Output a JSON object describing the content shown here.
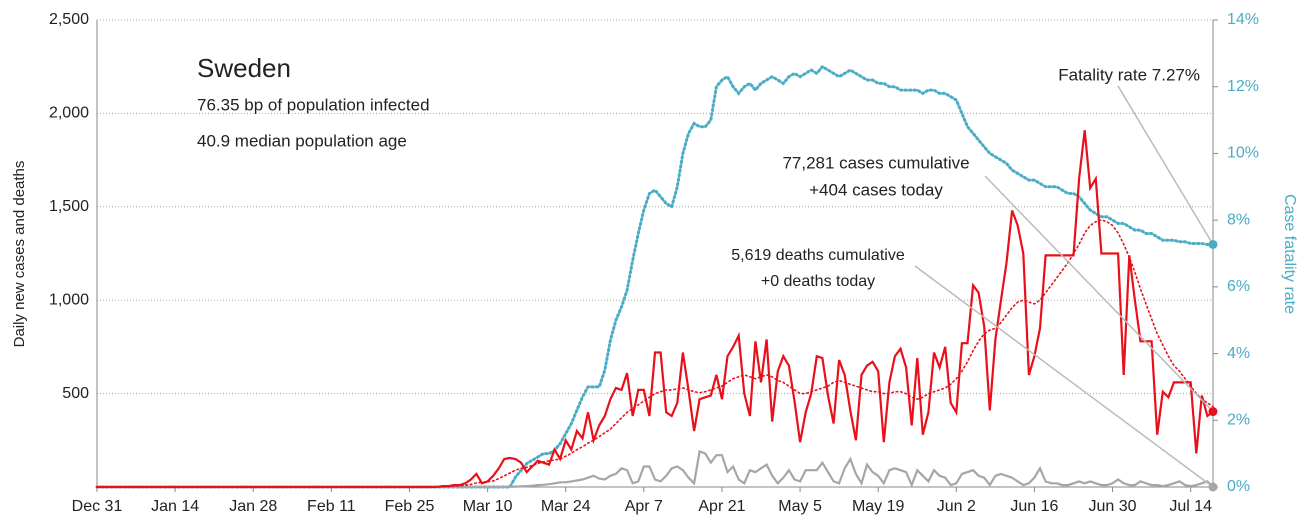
{
  "chart_data": {
    "type": "line",
    "title": "Sweden",
    "subtitle": [
      "76.35 bp of population infected",
      "40.9 median population age"
    ],
    "ylabel": "Daily new cases and deaths",
    "y2label": "Case fatality rate",
    "annotations": [
      "Fatality rate 7.27%",
      "77,281 cases cumulative",
      "+404 cases today",
      "5,619 deaths cumulative",
      "+0 deaths today"
    ],
    "grid": true,
    "ylim": [
      0,
      2500
    ],
    "yticks": [
      500,
      {
        "value": 1000,
        "label": "1,000"
      },
      {
        "value": 1500,
        "label": "1,500"
      },
      {
        "value": 2000,
        "label": "2,000"
      },
      {
        "value": 2500,
        "label": "2,500"
      }
    ],
    "y2lim": [
      0,
      14
    ],
    "y2ticks": [
      {
        "value": 0,
        "label": "0%"
      },
      {
        "value": 2,
        "label": "2%"
      },
      {
        "value": 4,
        "label": "4%"
      },
      {
        "value": 6,
        "label": "6%"
      },
      {
        "value": 8,
        "label": "8%"
      },
      {
        "value": 10,
        "label": "10%"
      },
      {
        "value": 12,
        "label": "12%"
      },
      {
        "value": 14,
        "label": "14%"
      }
    ],
    "categories": [
      "Dec 31",
      null,
      null,
      null,
      null,
      null,
      null,
      null,
      null,
      null,
      null,
      null,
      null,
      null,
      "Jan 14",
      null,
      null,
      null,
      null,
      null,
      null,
      null,
      null,
      null,
      null,
      null,
      null,
      null,
      "Jan 28",
      null,
      null,
      null,
      null,
      null,
      null,
      null,
      null,
      null,
      null,
      null,
      null,
      null,
      "Feb 11",
      null,
      null,
      null,
      null,
      null,
      null,
      null,
      null,
      null,
      null,
      null,
      null,
      null,
      "Feb 25",
      null,
      null,
      null,
      null,
      null,
      null,
      null,
      null,
      null,
      null,
      null,
      null,
      null,
      "Mar 10",
      null,
      null,
      null,
      null,
      null,
      null,
      null,
      null,
      null,
      null,
      null,
      null,
      null,
      "Mar 24",
      null,
      null,
      null,
      null,
      null,
      null,
      null,
      null,
      null,
      null,
      null,
      null,
      null,
      "Apr 7",
      null,
      null,
      null,
      null,
      null,
      null,
      null,
      null,
      null,
      null,
      null,
      null,
      null,
      "Apr 21",
      null,
      null,
      null,
      null,
      null,
      null,
      null,
      null,
      null,
      null,
      null,
      null,
      null,
      "May 5",
      null,
      null,
      null,
      null,
      null,
      null,
      null,
      null,
      null,
      null,
      null,
      null,
      null,
      "May 19",
      null,
      null,
      null,
      null,
      null,
      null,
      null,
      null,
      null,
      null,
      null,
      null,
      null,
      "Jun 2",
      null,
      null,
      null,
      null,
      null,
      null,
      null,
      null,
      null,
      null,
      null,
      null,
      null,
      "Jun 16",
      null,
      null,
      null,
      null,
      null,
      null,
      null,
      null,
      null,
      null,
      null,
      null,
      null,
      "Jun 30",
      null,
      null,
      null,
      null,
      null,
      null,
      null,
      null,
      null,
      null,
      null,
      null,
      null,
      "Jul 14",
      null,
      null,
      null,
      null
    ],
    "series": [
      {
        "color": "#4bacc6",
        "line_style": "dotted",
        "axis": "y2",
        "values": [
          0,
          0,
          0,
          0,
          0,
          0,
          0,
          0,
          0,
          0,
          0,
          0,
          0,
          0,
          0,
          0,
          0,
          0,
          0,
          0,
          0,
          0,
          0,
          0,
          0,
          0,
          0,
          0,
          0,
          0,
          0,
          0,
          0,
          0,
          0,
          0,
          0,
          0,
          0,
          0,
          0,
          0,
          0,
          0,
          0,
          0,
          0,
          0,
          0,
          0,
          0,
          0,
          0,
          0,
          0,
          0,
          0,
          0,
          0,
          0,
          0,
          0,
          0,
          0,
          0,
          0,
          0,
          0,
          0,
          0,
          0,
          0,
          0,
          0,
          0,
          0.3,
          0.5,
          0.7,
          0.8,
          0.9,
          1.0,
          1.0,
          1.1,
          1.3,
          1.6,
          1.9,
          2.3,
          2.7,
          3.0,
          3.0,
          3.0,
          3.5,
          4.4,
          5.0,
          5.4,
          5.9,
          6.8,
          7.6,
          8.3,
          8.8,
          8.9,
          8.7,
          8.5,
          8.4,
          9.0,
          10.0,
          10.6,
          10.9,
          10.8,
          10.8,
          11.0,
          12.0,
          12.2,
          12.3,
          12.0,
          11.8,
          12.0,
          12.1,
          11.9,
          12.1,
          12.2,
          12.3,
          12.2,
          12.1,
          12.3,
          12.4,
          12.3,
          12.4,
          12.5,
          12.4,
          12.6,
          12.5,
          12.4,
          12.3,
          12.4,
          12.5,
          12.4,
          12.3,
          12.2,
          12.2,
          12.1,
          12.1,
          12.0,
          12.0,
          11.9,
          11.9,
          11.9,
          11.9,
          11.8,
          11.9,
          11.9,
          11.8,
          11.8,
          11.7,
          11.6,
          11.2,
          10.8,
          10.6,
          10.4,
          10.2,
          10.0,
          9.9,
          9.8,
          9.7,
          9.5,
          9.4,
          9.3,
          9.2,
          9.2,
          9.1,
          9.0,
          9.0,
          9.0,
          8.9,
          8.8,
          8.8,
          8.7,
          8.5,
          8.3,
          8.2,
          8.1,
          8.1,
          8.0,
          7.9,
          7.9,
          7.8,
          7.7,
          7.7,
          7.6,
          7.6,
          7.5,
          7.4,
          7.4,
          7.4,
          7.35,
          7.35,
          7.3,
          7.3,
          7.3,
          7.27,
          7.27
        ]
      },
      {
        "color": "#a6a6a6",
        "line_style": "solid",
        "values": [
          0,
          0,
          0,
          0,
          0,
          0,
          0,
          0,
          0,
          0,
          0,
          0,
          0,
          0,
          0,
          0,
          0,
          0,
          0,
          0,
          0,
          0,
          0,
          0,
          0,
          0,
          0,
          0,
          0,
          0,
          0,
          0,
          0,
          0,
          0,
          0,
          0,
          0,
          0,
          0,
          0,
          0,
          0,
          0,
          0,
          0,
          0,
          0,
          0,
          0,
          0,
          0,
          0,
          0,
          0,
          0,
          0,
          0,
          0,
          0,
          0,
          0,
          0,
          0,
          0,
          0,
          0,
          0,
          0,
          0,
          0,
          0,
          0,
          1,
          1,
          2,
          3,
          5,
          7,
          10,
          12,
          15,
          20,
          25,
          25,
          30,
          35,
          40,
          50,
          60,
          45,
          40,
          60,
          70,
          100,
          90,
          20,
          30,
          110,
          110,
          40,
          30,
          60,
          100,
          110,
          90,
          50,
          20,
          190,
          180,
          130,
          170,
          170,
          80,
          110,
          40,
          20,
          90,
          80,
          100,
          120,
          60,
          20,
          50,
          90,
          40,
          30,
          90,
          90,
          90,
          130,
          80,
          30,
          20,
          100,
          150,
          70,
          20,
          120,
          80,
          60,
          20,
          90,
          100,
          90,
          80,
          10,
          90,
          60,
          30,
          90,
          60,
          50,
          10,
          20,
          70,
          80,
          90,
          60,
          50,
          10,
          60,
          70,
          60,
          50,
          30,
          10,
          20,
          50,
          100,
          30,
          20,
          20,
          10,
          10,
          20,
          30,
          20,
          30,
          20,
          10,
          10,
          20,
          40,
          20,
          10,
          10,
          30,
          20,
          10,
          10,
          5,
          10,
          20,
          30,
          10,
          5,
          10,
          20,
          30,
          0
        ]
      },
      {
        "color": "#e8101a",
        "line_style": "dotted",
        "values": [
          0,
          0,
          0,
          0,
          0,
          0,
          0,
          0,
          0,
          0,
          0,
          0,
          0,
          0,
          0,
          0,
          0,
          0,
          0,
          0,
          0,
          0,
          0,
          0,
          0,
          0,
          0,
          0,
          0,
          0,
          0,
          0,
          0,
          0,
          0,
          0,
          0,
          0,
          0,
          0,
          0,
          0,
          0,
          0,
          0,
          0,
          0,
          0,
          0,
          0,
          0,
          0,
          0,
          0,
          0,
          0,
          0,
          0,
          0,
          0,
          0,
          0,
          1,
          2,
          4,
          6,
          9,
          14,
          22,
          25,
          28,
          32,
          45,
          60,
          75,
          90,
          100,
          105,
          115,
          125,
          135,
          140,
          145,
          150,
          165,
          180,
          200,
          215,
          235,
          250,
          270,
          290,
          310,
          340,
          370,
          400,
          420,
          440,
          460,
          480,
          500,
          510,
          520,
          520,
          525,
          530,
          520,
          510,
          505,
          510,
          520,
          530,
          540,
          560,
          580,
          590,
          600,
          590,
          580,
          590,
          600,
          590,
          570,
          560,
          540,
          520,
          500,
          500,
          510,
          520,
          530,
          540,
          560,
          570,
          560,
          550,
          540,
          530,
          520,
          510,
          510,
          500,
          500,
          510,
          510,
          500,
          480,
          470,
          480,
          500,
          510,
          520,
          530,
          550,
          580,
          620,
          670,
          730,
          780,
          820,
          840,
          850,
          880,
          920,
          960,
          990,
          1000,
          990,
          980,
          1000,
          1040,
          1080,
          1120,
          1160,
          1200,
          1250,
          1300,
          1360,
          1400,
          1420,
          1430,
          1420,
          1400,
          1360,
          1300,
          1230,
          1150,
          1060,
          980,
          900,
          820,
          760,
          700,
          650,
          620,
          580,
          540,
          500,
          470,
          450,
          430
        ]
      },
      {
        "color": "#e8101a",
        "line_style": "solid",
        "values": [
          0,
          0,
          0,
          0,
          0,
          0,
          0,
          0,
          0,
          0,
          0,
          0,
          0,
          0,
          0,
          0,
          0,
          0,
          0,
          0,
          0,
          0,
          0,
          0,
          0,
          0,
          0,
          0,
          0,
          0,
          0,
          0,
          0,
          0,
          0,
          0,
          0,
          0,
          0,
          0,
          0,
          0,
          0,
          0,
          0,
          0,
          0,
          0,
          0,
          0,
          0,
          0,
          0,
          0,
          0,
          0,
          0,
          0,
          0,
          0,
          0,
          1,
          5,
          5,
          10,
          10,
          20,
          40,
          70,
          20,
          30,
          60,
          100,
          150,
          155,
          150,
          130,
          80,
          110,
          140,
          130,
          120,
          200,
          150,
          250,
          200,
          300,
          260,
          400,
          250,
          330,
          380,
          470,
          530,
          520,
          610,
          380,
          520,
          520,
          380,
          720,
          720,
          400,
          380,
          450,
          720,
          520,
          300,
          470,
          480,
          490,
          600,
          470,
          700,
          750,
          810,
          500,
          380,
          780,
          560,
          790,
          350,
          620,
          700,
          650,
          460,
          240,
          400,
          500,
          700,
          690,
          490,
          340,
          680,
          600,
          410,
          250,
          600,
          650,
          670,
          620,
          240,
          560,
          700,
          740,
          640,
          330,
          690,
          280,
          400,
          720,
          640,
          750,
          450,
          400,
          770,
          770,
          1080,
          1040,
          860,
          410,
          790,
          1000,
          1200,
          1480,
          1400,
          1250,
          600,
          700,
          850,
          1240,
          1240,
          1240,
          1240,
          1240,
          1240,
          1650,
          1910,
          1600,
          1650,
          1250,
          1250,
          1250,
          1250,
          600,
          1240,
          1000,
          780,
          780,
          780,
          280,
          510,
          480,
          560,
          560,
          560,
          560,
          180,
          490,
          380,
          404
        ]
      }
    ]
  }
}
